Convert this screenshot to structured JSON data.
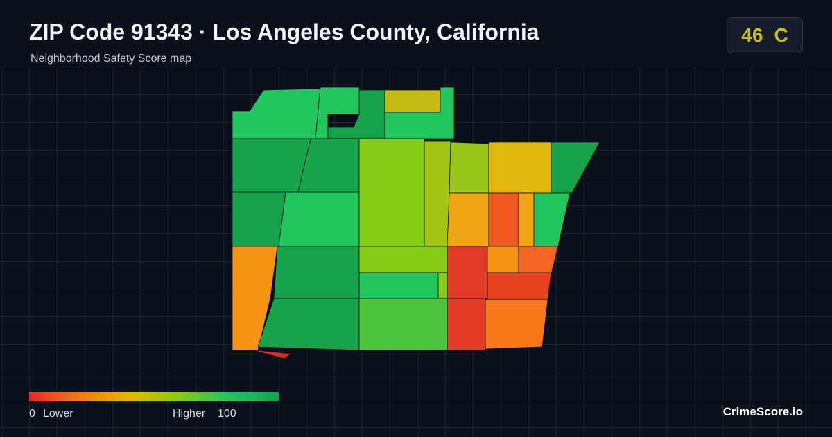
{
  "header": {
    "title": "ZIP Code 91343 · Los Angeles County, California",
    "subtitle": "Neighborhood Safety Score map"
  },
  "badge": {
    "score": 46,
    "grade": "C"
  },
  "legend": {
    "min": 0,
    "min_label": "Lower",
    "max_label": "Higher",
    "max": 100
  },
  "brand": "CrimeScore.io"
}
